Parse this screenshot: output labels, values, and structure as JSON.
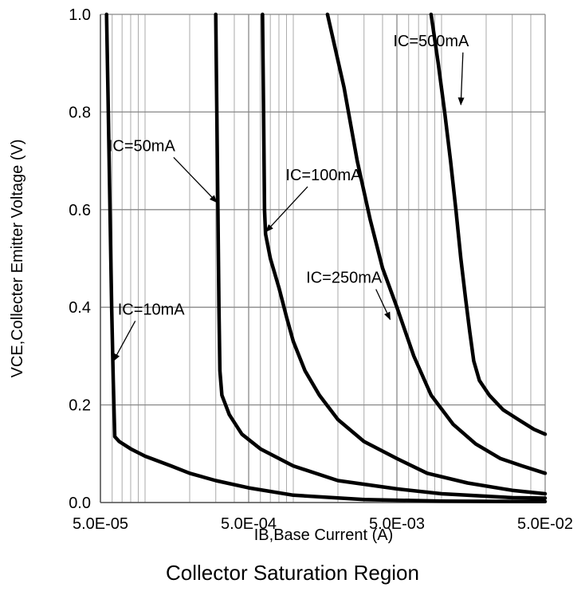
{
  "chart_data": {
    "type": "line",
    "title": "Collector Saturation Region",
    "xlabel": "IB,Base Current (A)",
    "ylabel": "VCE,Collecter Emitter Voltage (V)",
    "x_scale": "log",
    "xlim": [
      5e-05,
      0.05
    ],
    "ylim": [
      0.0,
      1.0
    ],
    "x_ticks": [
      5e-05,
      0.0005,
      0.005,
      0.05
    ],
    "x_tick_labels": [
      "5.0E-05",
      "5.0E-04",
      "5.0E-03",
      "5.0E-02"
    ],
    "y_ticks": [
      0.0,
      0.2,
      0.4,
      0.6,
      0.8,
      1.0
    ],
    "y_tick_labels": [
      "0.0",
      "0.2",
      "0.4",
      "0.6",
      "0.8",
      "1.0"
    ],
    "grid": true,
    "line_color": "#000000",
    "grid_color": "#aaaaaa",
    "series": [
      {
        "name": "IC=10mA",
        "points": [
          [
            5.5e-05,
            1.0
          ],
          [
            5.65e-05,
            0.8
          ],
          [
            5.8e-05,
            0.6
          ],
          [
            5.95e-05,
            0.4
          ],
          [
            6.1e-05,
            0.25
          ],
          [
            6.2e-05,
            0.17
          ],
          [
            6.25e-05,
            0.135
          ],
          [
            6.7e-05,
            0.125
          ],
          [
            8e-05,
            0.11
          ],
          [
            0.0001,
            0.095
          ],
          [
            0.00015,
            0.075
          ],
          [
            0.0002,
            0.06
          ],
          [
            0.0003,
            0.045
          ],
          [
            0.0005,
            0.03
          ],
          [
            0.001,
            0.015
          ],
          [
            0.003,
            0.006
          ],
          [
            0.01,
            0.003
          ],
          [
            0.05,
            0.002
          ]
        ]
      },
      {
        "name": "IC=50mA",
        "points": [
          [
            0.0003,
            1.0
          ],
          [
            0.00031,
            0.6
          ],
          [
            0.000315,
            0.4
          ],
          [
            0.00032,
            0.27
          ],
          [
            0.00033,
            0.22
          ],
          [
            0.00037,
            0.18
          ],
          [
            0.00045,
            0.14
          ],
          [
            0.0006,
            0.11
          ],
          [
            0.001,
            0.075
          ],
          [
            0.002,
            0.045
          ],
          [
            0.005,
            0.028
          ],
          [
            0.01,
            0.018
          ],
          [
            0.03,
            0.01
          ],
          [
            0.05,
            0.009
          ]
        ]
      },
      {
        "name": "IC=100mA",
        "points": [
          [
            0.00062,
            1.0
          ],
          [
            0.00063,
            0.8
          ],
          [
            0.00064,
            0.6
          ],
          [
            0.00065,
            0.55
          ],
          [
            0.0007,
            0.5
          ],
          [
            0.0008,
            0.44
          ],
          [
            0.0009,
            0.38
          ],
          [
            0.001,
            0.33
          ],
          [
            0.0012,
            0.27
          ],
          [
            0.0015,
            0.22
          ],
          [
            0.002,
            0.17
          ],
          [
            0.003,
            0.125
          ],
          [
            0.005,
            0.09
          ],
          [
            0.008,
            0.06
          ],
          [
            0.015,
            0.04
          ],
          [
            0.03,
            0.025
          ],
          [
            0.05,
            0.018
          ]
        ]
      },
      {
        "name": "IC=250mA",
        "points": [
          [
            0.0017,
            1.0
          ],
          [
            0.0022,
            0.85
          ],
          [
            0.0027,
            0.7
          ],
          [
            0.0033,
            0.58
          ],
          [
            0.004,
            0.48
          ],
          [
            0.005,
            0.4
          ],
          [
            0.0065,
            0.3
          ],
          [
            0.0085,
            0.22
          ],
          [
            0.012,
            0.16
          ],
          [
            0.017,
            0.12
          ],
          [
            0.025,
            0.09
          ],
          [
            0.035,
            0.075
          ],
          [
            0.05,
            0.06
          ]
        ]
      },
      {
        "name": "IC=500mA",
        "points": [
          [
            0.0085,
            1.0
          ],
          [
            0.0095,
            0.9
          ],
          [
            0.0105,
            0.8
          ],
          [
            0.0115,
            0.7
          ],
          [
            0.0125,
            0.6
          ],
          [
            0.0135,
            0.5
          ],
          [
            0.0145,
            0.42
          ],
          [
            0.0155,
            0.35
          ],
          [
            0.0165,
            0.29
          ],
          [
            0.018,
            0.25
          ],
          [
            0.021,
            0.22
          ],
          [
            0.026,
            0.19
          ],
          [
            0.033,
            0.17
          ],
          [
            0.042,
            0.15
          ],
          [
            0.05,
            0.14
          ]
        ]
      }
    ],
    "annotations": [
      {
        "text": "IC=10mA",
        "x": 0.00011,
        "y": 0.385,
        "arrow_x": 6.12e-05,
        "arrow_y": 0.29
      },
      {
        "text": "IC=50mA",
        "x": 9.5e-05,
        "y": 0.72,
        "arrow_x": 0.000305,
        "arrow_y": 0.615
      },
      {
        "text": "IC=100mA",
        "x": 0.0016,
        "y": 0.66,
        "arrow_x": 0.000655,
        "arrow_y": 0.555
      },
      {
        "text": "IC=250mA",
        "x": 0.0022,
        "y": 0.45,
        "arrow_x": 0.0045,
        "arrow_y": 0.375
      },
      {
        "text": "IC=500mA",
        "x": 0.0085,
        "y": 0.935,
        "arrow_x": 0.0135,
        "arrow_y": 0.815
      }
    ]
  }
}
